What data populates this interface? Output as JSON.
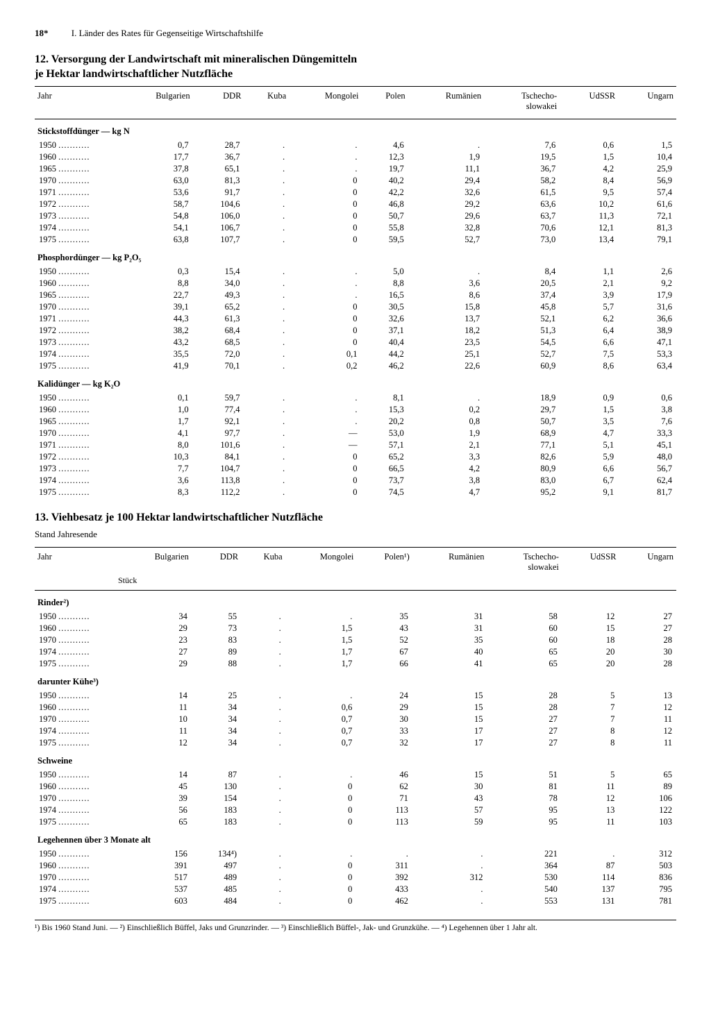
{
  "page": {
    "number": "18*",
    "running_head": "I. Länder des Rates für Gegenseitige Wirtschaftshilfe"
  },
  "table12": {
    "number": "12.",
    "title_l1": "Versorgung der Landwirtschaft mit mineralischen Düngemitteln",
    "title_l2": "je Hektar landwirtschaftlicher Nutzfläche",
    "columns": [
      "Jahr",
      "Bulgarien",
      "DDR",
      "Kuba",
      "Mongolei",
      "Polen",
      "Rumänien",
      "Tschecho-\nslowakei",
      "UdSSR",
      "Ungarn"
    ],
    "groups": [
      {
        "label": "Stickstoffdünger — kg N",
        "rows": [
          [
            "1950",
            "0,7",
            "28,7",
            ".",
            ".",
            "4,6",
            ".",
            "7,6",
            "0,6",
            "1,5"
          ],
          [
            "1960",
            "17,7",
            "36,7",
            ".",
            ".",
            "12,3",
            "1,9",
            "19,5",
            "1,5",
            "10,4"
          ],
          [
            "1965",
            "37,8",
            "65,1",
            ".",
            ".",
            "19,7",
            "11,1",
            "36,7",
            "4,2",
            "25,9"
          ],
          [
            "1970",
            "63,0",
            "81,3",
            ".",
            "0",
            "40,2",
            "29,4",
            "58,2",
            "8,4",
            "56,9"
          ],
          [
            "1971",
            "53,6",
            "91,7",
            ".",
            "0",
            "42,2",
            "32,6",
            "61,5",
            "9,5",
            "57,4"
          ],
          [
            "1972",
            "58,7",
            "104,6",
            ".",
            "0",
            "46,8",
            "29,2",
            "63,6",
            "10,2",
            "61,6"
          ],
          [
            "1973",
            "54,8",
            "106,0",
            ".",
            "0",
            "50,7",
            "29,6",
            "63,7",
            "11,3",
            "72,1"
          ],
          [
            "1974",
            "54,1",
            "106,7",
            ".",
            "0",
            "55,8",
            "32,8",
            "70,6",
            "12,1",
            "81,3"
          ],
          [
            "1975",
            "63,8",
            "107,7",
            ".",
            "0",
            "59,5",
            "52,7",
            "73,0",
            "13,4",
            "79,1"
          ]
        ]
      },
      {
        "label": "Phosphordünger — kg P₂O₅",
        "rows": [
          [
            "1950",
            "0,3",
            "15,4",
            ".",
            ".",
            "5,0",
            ".",
            "8,4",
            "1,1",
            "2,6"
          ],
          [
            "1960",
            "8,8",
            "34,0",
            ".",
            ".",
            "8,8",
            "3,6",
            "20,5",
            "2,1",
            "9,2"
          ],
          [
            "1965",
            "22,7",
            "49,3",
            ".",
            ".",
            "16,5",
            "8,6",
            "37,4",
            "3,9",
            "17,9"
          ],
          [
            "1970",
            "39,1",
            "65,2",
            ".",
            "0",
            "30,5",
            "15,8",
            "45,8",
            "5,7",
            "31,6"
          ],
          [
            "1971",
            "44,3",
            "61,3",
            ".",
            "0",
            "32,6",
            "13,7",
            "52,1",
            "6,2",
            "36,6"
          ],
          [
            "1972",
            "38,2",
            "68,4",
            ".",
            "0",
            "37,1",
            "18,2",
            "51,3",
            "6,4",
            "38,9"
          ],
          [
            "1973",
            "43,2",
            "68,5",
            ".",
            "0",
            "40,4",
            "23,5",
            "54,5",
            "6,6",
            "47,1"
          ],
          [
            "1974",
            "35,5",
            "72,0",
            ".",
            "0,1",
            "44,2",
            "25,1",
            "52,7",
            "7,5",
            "53,3"
          ],
          [
            "1975",
            "41,9",
            "70,1",
            ".",
            "0,2",
            "46,2",
            "22,6",
            "60,9",
            "8,6",
            "63,4"
          ]
        ]
      },
      {
        "label": "Kalidünger — kg K₂O",
        "rows": [
          [
            "1950",
            "0,1",
            "59,7",
            ".",
            ".",
            "8,1",
            ".",
            "18,9",
            "0,9",
            "0,6"
          ],
          [
            "1960",
            "1,0",
            "77,4",
            ".",
            ".",
            "15,3",
            "0,2",
            "29,7",
            "1,5",
            "3,8"
          ],
          [
            "1965",
            "1,7",
            "92,1",
            ".",
            ".",
            "20,2",
            "0,8",
            "50,7",
            "3,5",
            "7,6"
          ],
          [
            "1970",
            "4,1",
            "97,7",
            ".",
            "—",
            "53,0",
            "1,9",
            "68,9",
            "4,7",
            "33,3"
          ],
          [
            "1971",
            "8,0",
            "101,6",
            ".",
            "—",
            "57,1",
            "2,1",
            "77,1",
            "5,1",
            "45,1"
          ],
          [
            "1972",
            "10,3",
            "84,1",
            ".",
            "0",
            "65,2",
            "3,3",
            "82,6",
            "5,9",
            "48,0"
          ],
          [
            "1973",
            "7,7",
            "104,7",
            ".",
            "0",
            "66,5",
            "4,2",
            "80,9",
            "6,6",
            "56,7"
          ],
          [
            "1974",
            "3,6",
            "113,8",
            ".",
            "0",
            "73,7",
            "3,8",
            "83,0",
            "6,7",
            "62,4"
          ],
          [
            "1975",
            "8,3",
            "112,2",
            ".",
            "0",
            "74,5",
            "4,7",
            "95,2",
            "9,1",
            "81,7"
          ]
        ]
      }
    ]
  },
  "table13": {
    "number": "13.",
    "title": "Viehbesatz je 100 Hektar landwirtschaftlicher Nutzfläche",
    "subtitle": "Stand Jahresende",
    "unit_row": "Stück",
    "columns": [
      "Jahr",
      "Bulgarien",
      "DDR",
      "Kuba",
      "Mongolei",
      "Polen¹)",
      "Rumänien",
      "Tschecho-\nslowakei",
      "UdSSR",
      "Ungarn"
    ],
    "groups": [
      {
        "label": "Rinder²)",
        "rows": [
          [
            "1950",
            "34",
            "55",
            ".",
            ".",
            "35",
            "31",
            "58",
            "12",
            "27"
          ],
          [
            "1960",
            "29",
            "73",
            ".",
            "1,5",
            "43",
            "31",
            "60",
            "15",
            "27"
          ],
          [
            "1970",
            "23",
            "83",
            ".",
            "1,5",
            "52",
            "35",
            "60",
            "18",
            "28"
          ],
          [
            "1974",
            "27",
            "89",
            ".",
            "1,7",
            "67",
            "40",
            "65",
            "20",
            "30"
          ],
          [
            "1975",
            "29",
            "88",
            ".",
            "1,7",
            "66",
            "41",
            "65",
            "20",
            "28"
          ]
        ]
      },
      {
        "label": "darunter Kühe³)",
        "rows": [
          [
            "1950",
            "14",
            "25",
            ".",
            ".",
            "24",
            "15",
            "28",
            "5",
            "13"
          ],
          [
            "1960",
            "11",
            "34",
            ".",
            "0,6",
            "29",
            "15",
            "28",
            "7",
            "12"
          ],
          [
            "1970",
            "10",
            "34",
            ".",
            "0,7",
            "30",
            "15",
            "27",
            "7",
            "11"
          ],
          [
            "1974",
            "11",
            "34",
            ".",
            "0,7",
            "33",
            "17",
            "27",
            "8",
            "12"
          ],
          [
            "1975",
            "12",
            "34",
            ".",
            "0,7",
            "32",
            "17",
            "27",
            "8",
            "11"
          ]
        ]
      },
      {
        "label": "Schweine",
        "rows": [
          [
            "1950",
            "14",
            "87",
            ".",
            ".",
            "46",
            "15",
            "51",
            "5",
            "65"
          ],
          [
            "1960",
            "45",
            "130",
            ".",
            "0",
            "62",
            "30",
            "81",
            "11",
            "89"
          ],
          [
            "1970",
            "39",
            "154",
            ".",
            "0",
            "71",
            "43",
            "78",
            "12",
            "106"
          ],
          [
            "1974",
            "56",
            "183",
            ".",
            "0",
            "113",
            "57",
            "95",
            "13",
            "122"
          ],
          [
            "1975",
            "65",
            "183",
            ".",
            "0",
            "113",
            "59",
            "95",
            "11",
            "103"
          ]
        ]
      },
      {
        "label": "Legehennen über 3 Monate alt",
        "rows": [
          [
            "1950",
            "156",
            "134⁴)",
            ".",
            ".",
            ".",
            ".",
            "221",
            ".",
            "312"
          ],
          [
            "1960",
            "391",
            "497",
            ".",
            "0",
            "311",
            ".",
            "364",
            "87",
            "503"
          ],
          [
            "1970",
            "517",
            "489",
            ".",
            "0",
            "392",
            "312",
            "530",
            "114",
            "836"
          ],
          [
            "1974",
            "537",
            "485",
            ".",
            "0",
            "433",
            ".",
            "540",
            "137",
            "795"
          ],
          [
            "1975",
            "603",
            "484",
            ".",
            "0",
            "462",
            ".",
            "553",
            "131",
            "781"
          ]
        ]
      }
    ]
  },
  "footnotes": "¹) Bis 1960 Stand Juni. — ²) Einschließlich Büffel, Jaks und Grunzrinder. — ³) Einschließlich Büffel-, Jak- und Grunzkühe. — ⁴) Legehennen über 1 Jahr alt."
}
